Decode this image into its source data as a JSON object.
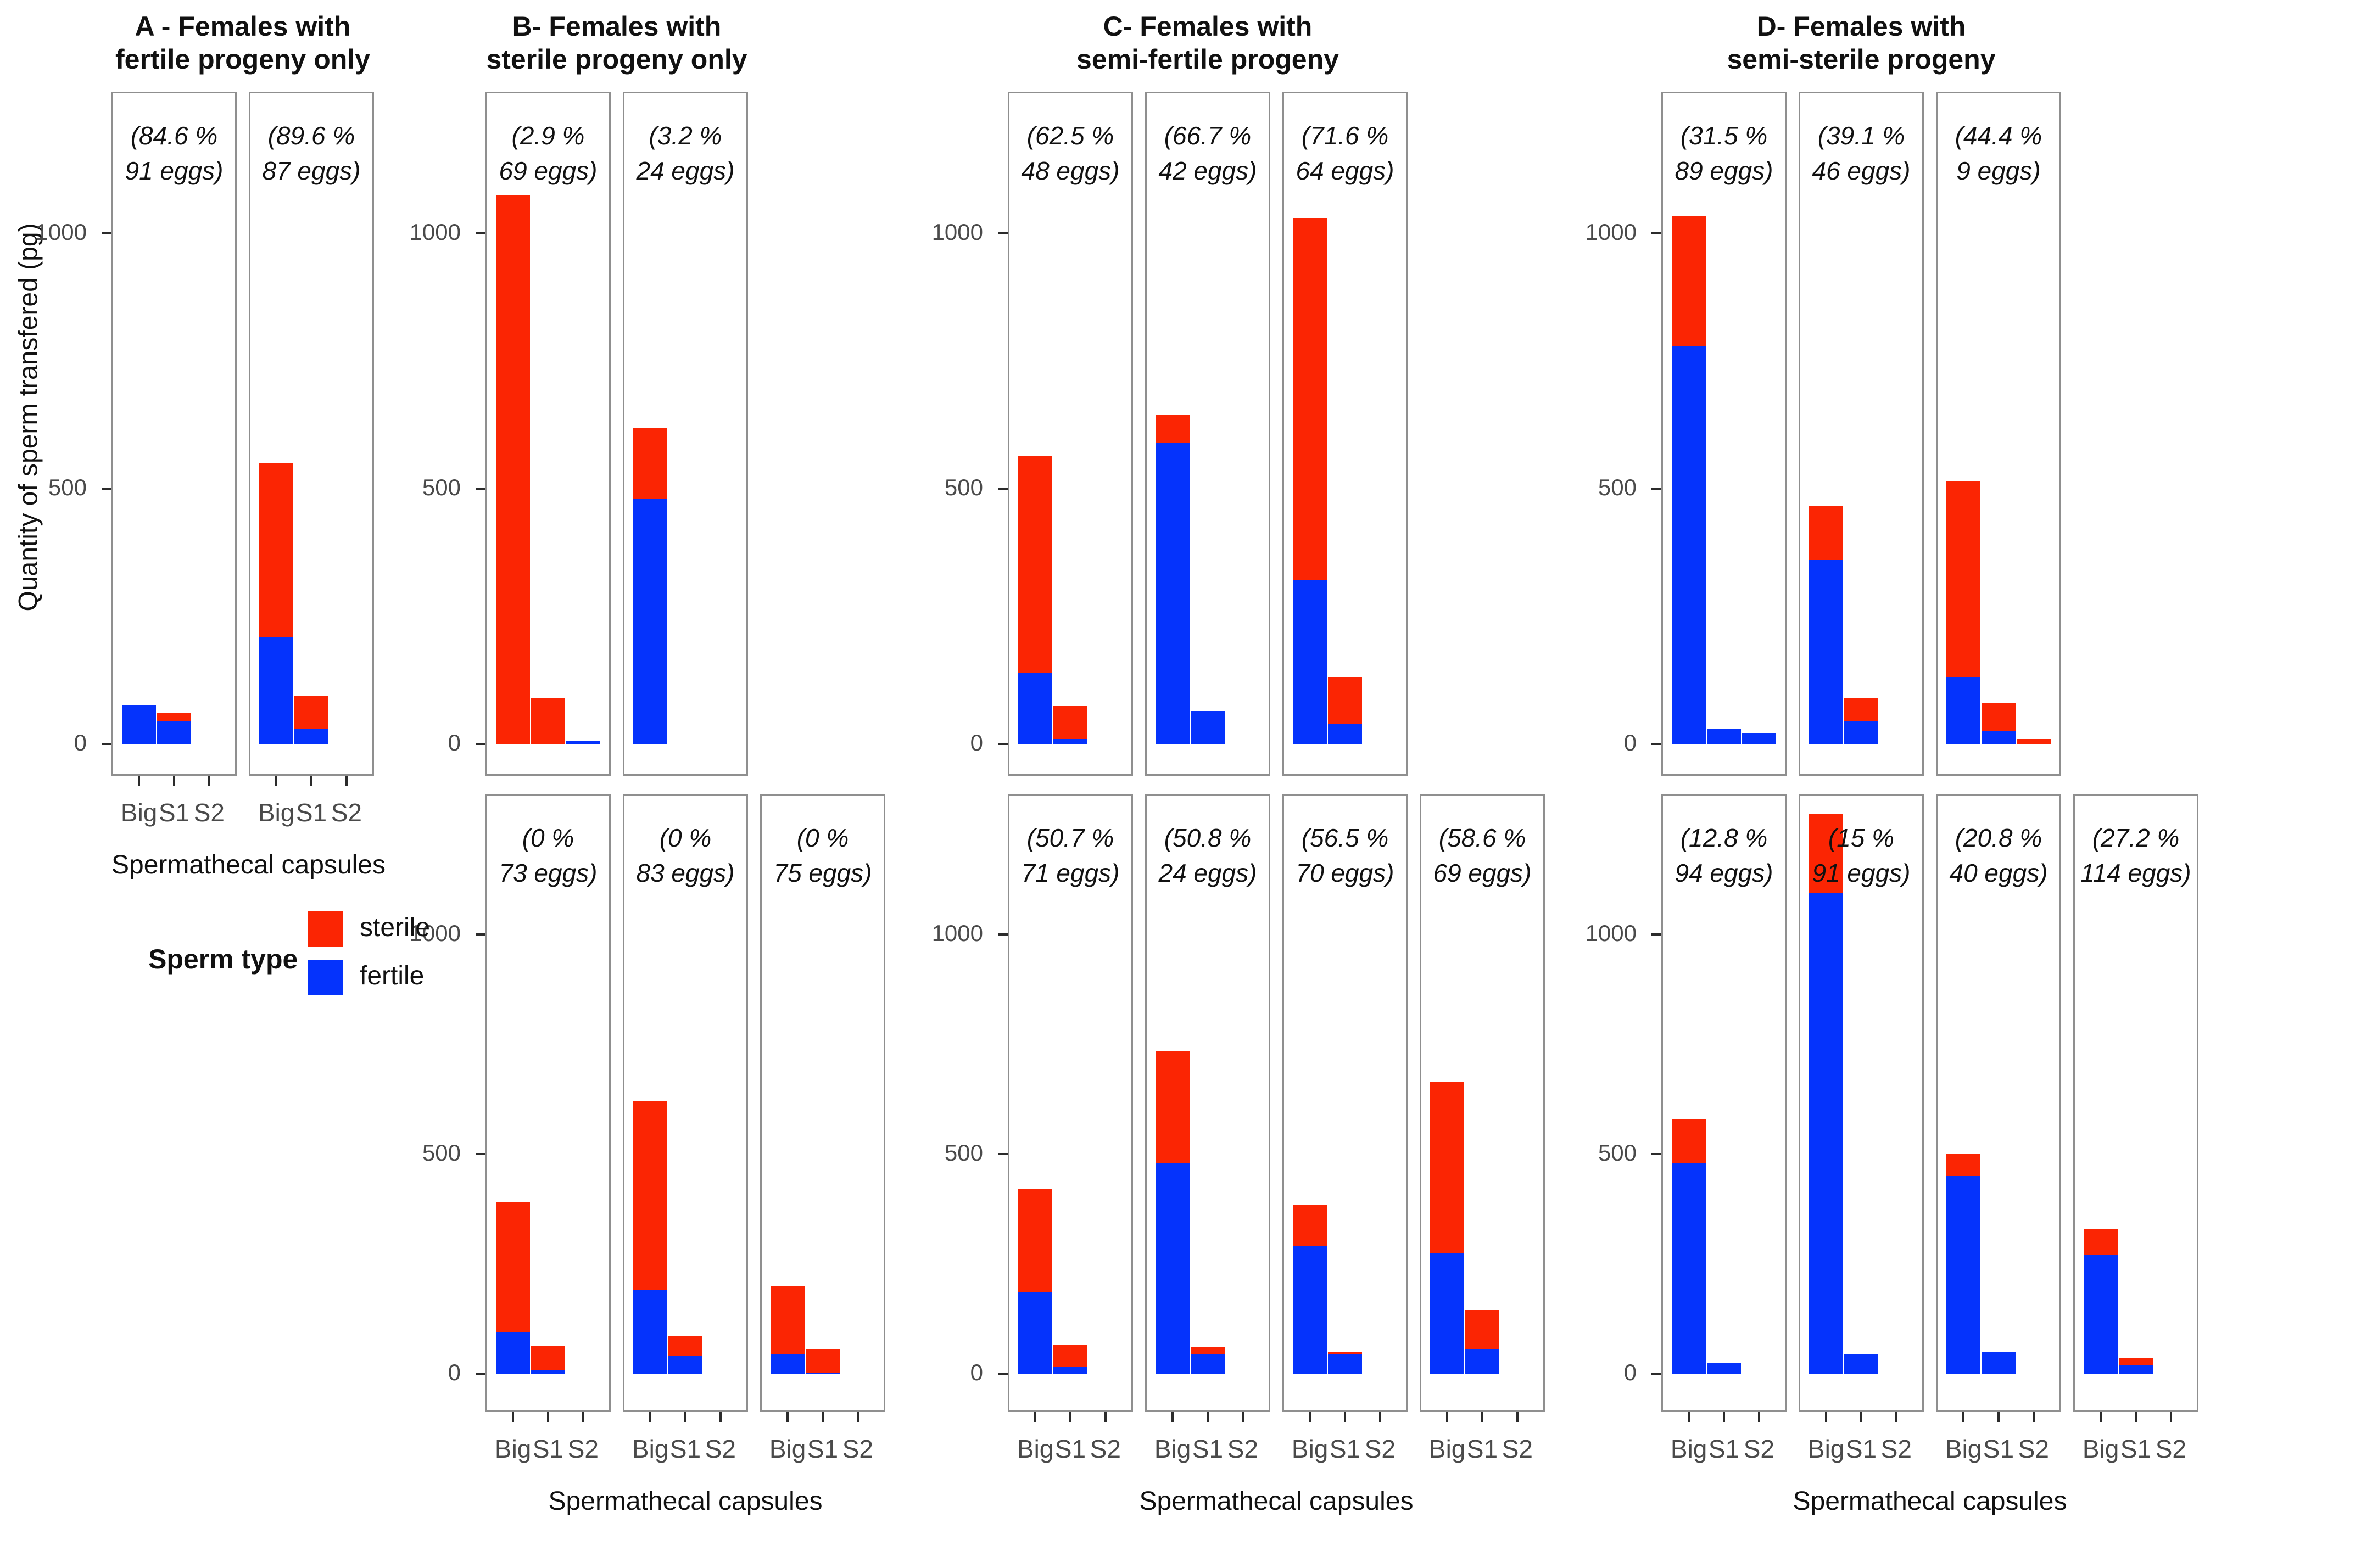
{
  "chart_data": {
    "type": "bar",
    "stacked": true,
    "categories": [
      "Big",
      "S1",
      "S2"
    ],
    "ylabel": "Quantity of sperm transfered (pg)",
    "xlabel": "Spermathecal capsules",
    "yticks": [
      0,
      500,
      1000
    ],
    "ylim_top_row": [
      -75,
      1340
    ],
    "ylim_bottom_row": [
      -87,
      1320
    ],
    "grid": false,
    "colors": {
      "sterile": "#fb2503",
      "fertile": "#0533fc",
      "panel_border": "#8f8f8f",
      "tick_text": "#4a4a4a"
    },
    "legend": {
      "title": "Sperm type",
      "position": "left-under-panel-A",
      "entries": [
        {
          "label": "sterile",
          "color": "#fb2503"
        },
        {
          "label": "fertile",
          "color": "#0533fc"
        }
      ]
    },
    "groups": [
      {
        "id": "A",
        "title_line1": "A - Females with",
        "title_line2": "fertile progeny only",
        "rows": [
          {
            "row": "top",
            "panels": [
              {
                "percent": "84.6",
                "eggs": "91",
                "bars": [
                  {
                    "category": "Big",
                    "fertile": 75,
                    "sterile": 0
                  },
                  {
                    "category": "S1",
                    "fertile": 45,
                    "sterile": 15
                  },
                  {
                    "category": "S2",
                    "fertile": 0,
                    "sterile": 0
                  }
                ]
              },
              {
                "percent": "89.6",
                "eggs": "87",
                "bars": [
                  {
                    "category": "Big",
                    "fertile": 210,
                    "sterile": 340
                  },
                  {
                    "category": "S1",
                    "fertile": 30,
                    "sterile": 65
                  },
                  {
                    "category": "S2",
                    "fertile": 0,
                    "sterile": 0
                  }
                ]
              }
            ]
          }
        ]
      },
      {
        "id": "B",
        "title_line1": "B- Females with",
        "title_line2": "sterile progeny only",
        "rows": [
          {
            "row": "top",
            "panels": [
              {
                "percent": "2.9",
                "eggs": "69",
                "bars": [
                  {
                    "category": "Big",
                    "fertile": 0,
                    "sterile": 1075
                  },
                  {
                    "category": "S1",
                    "fertile": 0,
                    "sterile": 90
                  },
                  {
                    "category": "S2",
                    "fertile": 5,
                    "sterile": 0
                  }
                ]
              },
              {
                "percent": "3.2",
                "eggs": "24",
                "bars": [
                  {
                    "category": "Big",
                    "fertile": 480,
                    "sterile": 140
                  },
                  {
                    "category": "S1",
                    "fertile": 0,
                    "sterile": 0
                  },
                  {
                    "category": "S2",
                    "fertile": 0,
                    "sterile": 0
                  }
                ]
              }
            ]
          },
          {
            "row": "bottom",
            "panels": [
              {
                "percent": "0",
                "eggs": "73",
                "bars": [
                  {
                    "category": "Big",
                    "fertile": 95,
                    "sterile": 295
                  },
                  {
                    "category": "S1",
                    "fertile": 8,
                    "sterile": 55
                  },
                  {
                    "category": "S2",
                    "fertile": 0,
                    "sterile": 0
                  }
                ]
              },
              {
                "percent": "0",
                "eggs": "83",
                "bars": [
                  {
                    "category": "Big",
                    "fertile": 190,
                    "sterile": 430
                  },
                  {
                    "category": "S1",
                    "fertile": 40,
                    "sterile": 45
                  },
                  {
                    "category": "S2",
                    "fertile": 0,
                    "sterile": 0
                  }
                ]
              },
              {
                "percent": "0",
                "eggs": "75",
                "bars": [
                  {
                    "category": "Big",
                    "fertile": 45,
                    "sterile": 155
                  },
                  {
                    "category": "S1",
                    "fertile": 2,
                    "sterile": 53
                  },
                  {
                    "category": "S2",
                    "fertile": 0,
                    "sterile": 0
                  }
                ]
              }
            ]
          }
        ]
      },
      {
        "id": "C",
        "title_line1": "C- Females with",
        "title_line2": "semi-fertile progeny",
        "rows": [
          {
            "row": "top",
            "panels": [
              {
                "percent": "62.5",
                "eggs": "48",
                "bars": [
                  {
                    "category": "Big",
                    "fertile": 140,
                    "sterile": 425
                  },
                  {
                    "category": "S1",
                    "fertile": 10,
                    "sterile": 65
                  },
                  {
                    "category": "S2",
                    "fertile": 0,
                    "sterile": 0
                  }
                ]
              },
              {
                "percent": "66.7",
                "eggs": "42",
                "bars": [
                  {
                    "category": "Big",
                    "fertile": 590,
                    "sterile": 55
                  },
                  {
                    "category": "S1",
                    "fertile": 65,
                    "sterile": 0
                  },
                  {
                    "category": "S2",
                    "fertile": 0,
                    "sterile": 0
                  }
                ]
              },
              {
                "percent": "71.6",
                "eggs": "64",
                "bars": [
                  {
                    "category": "Big",
                    "fertile": 320,
                    "sterile": 710
                  },
                  {
                    "category": "S1",
                    "fertile": 40,
                    "sterile": 90
                  },
                  {
                    "category": "S2",
                    "fertile": 0,
                    "sterile": 0
                  }
                ]
              }
            ]
          },
          {
            "row": "bottom",
            "panels": [
              {
                "percent": "50.7",
                "eggs": "71",
                "bars": [
                  {
                    "category": "Big",
                    "fertile": 185,
                    "sterile": 235
                  },
                  {
                    "category": "S1",
                    "fertile": 15,
                    "sterile": 50
                  },
                  {
                    "category": "S2",
                    "fertile": 0,
                    "sterile": 0
                  }
                ]
              },
              {
                "percent": "50.8",
                "eggs": "24",
                "bars": [
                  {
                    "category": "Big",
                    "fertile": 480,
                    "sterile": 255
                  },
                  {
                    "category": "S1",
                    "fertile": 45,
                    "sterile": 15
                  },
                  {
                    "category": "S2",
                    "fertile": 0,
                    "sterile": 0
                  }
                ]
              },
              {
                "percent": "56.5",
                "eggs": "70",
                "bars": [
                  {
                    "category": "Big",
                    "fertile": 290,
                    "sterile": 95
                  },
                  {
                    "category": "S1",
                    "fertile": 45,
                    "sterile": 5
                  },
                  {
                    "category": "S2",
                    "fertile": 0,
                    "sterile": 0
                  }
                ]
              },
              {
                "percent": "58.6",
                "eggs": "69",
                "bars": [
                  {
                    "category": "Big",
                    "fertile": 275,
                    "sterile": 390
                  },
                  {
                    "category": "S1",
                    "fertile": 55,
                    "sterile": 90
                  },
                  {
                    "category": "S2",
                    "fertile": 0,
                    "sterile": 0
                  }
                ]
              }
            ]
          }
        ]
      },
      {
        "id": "D",
        "title_line1": "D- Females with",
        "title_line2": "semi-sterile progeny",
        "rows": [
          {
            "row": "top",
            "panels": [
              {
                "percent": "31.5",
                "eggs": "89",
                "bars": [
                  {
                    "category": "Big",
                    "fertile": 780,
                    "sterile": 255
                  },
                  {
                    "category": "S1",
                    "fertile": 30,
                    "sterile": 0
                  },
                  {
                    "category": "S2",
                    "fertile": 20,
                    "sterile": 0
                  }
                ]
              },
              {
                "percent": "39.1",
                "eggs": "46",
                "bars": [
                  {
                    "category": "Big",
                    "fertile": 360,
                    "sterile": 105
                  },
                  {
                    "category": "S1",
                    "fertile": 45,
                    "sterile": 45
                  },
                  {
                    "category": "S2",
                    "fertile": 0,
                    "sterile": 0
                  }
                ]
              },
              {
                "percent": "44.4",
                "eggs": "9",
                "bars": [
                  {
                    "category": "Big",
                    "fertile": 130,
                    "sterile": 385
                  },
                  {
                    "category": "S1",
                    "fertile": 25,
                    "sterile": 55
                  },
                  {
                    "category": "S2",
                    "fertile": 0,
                    "sterile": 10
                  }
                ]
              }
            ]
          },
          {
            "row": "bottom",
            "panels": [
              {
                "percent": "12.8",
                "eggs": "94",
                "bars": [
                  {
                    "category": "Big",
                    "fertile": 480,
                    "sterile": 100
                  },
                  {
                    "category": "S1",
                    "fertile": 25,
                    "sterile": 0
                  },
                  {
                    "category": "S2",
                    "fertile": 0,
                    "sterile": 0
                  }
                ]
              },
              {
                "percent": "15",
                "eggs": "91",
                "bars": [
                  {
                    "category": "Big",
                    "fertile": 1095,
                    "sterile": 180
                  },
                  {
                    "category": "S1",
                    "fertile": 45,
                    "sterile": 0
                  },
                  {
                    "category": "S2",
                    "fertile": 0,
                    "sterile": 0
                  }
                ]
              },
              {
                "percent": "20.8",
                "eggs": "40",
                "bars": [
                  {
                    "category": "Big",
                    "fertile": 450,
                    "sterile": 50
                  },
                  {
                    "category": "S1",
                    "fertile": 50,
                    "sterile": 0
                  },
                  {
                    "category": "S2",
                    "fertile": 0,
                    "sterile": 0
                  }
                ]
              },
              {
                "percent": "27.2",
                "eggs": "114",
                "bars": [
                  {
                    "category": "Big",
                    "fertile": 270,
                    "sterile": 60
                  },
                  {
                    "category": "S1",
                    "fertile": 20,
                    "sterile": 15
                  },
                  {
                    "category": "S2",
                    "fertile": 0,
                    "sterile": 0
                  }
                ]
              }
            ]
          }
        ]
      }
    ]
  }
}
